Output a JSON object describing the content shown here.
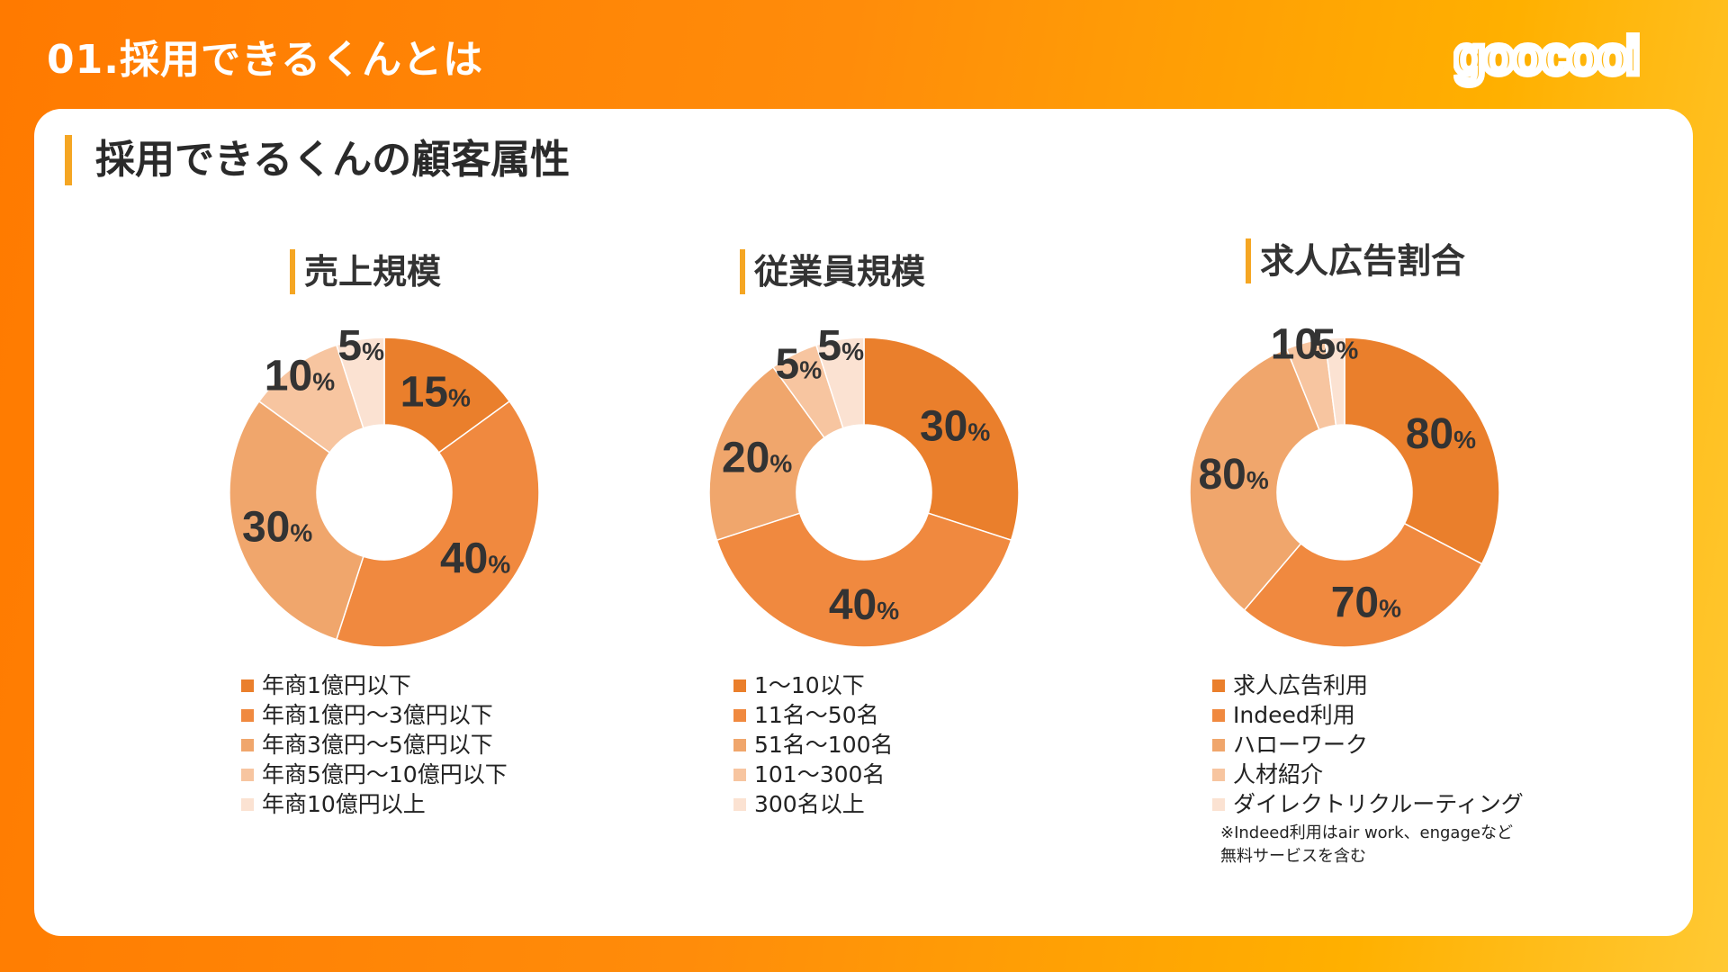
{
  "header": {
    "title": "01.採用できるくんとは",
    "logo_text": "goocooi"
  },
  "page_heading": "採用できるくんの顧客属性",
  "colors": [
    "#ea7f2c",
    "#f0893f",
    "#f0a66c",
    "#f7c5a0",
    "#fbe2d2"
  ],
  "chart_data": [
    {
      "type": "pie",
      "style": "donut",
      "title": "売上規模",
      "categories": [
        "年商1億円以下",
        "年商1億円〜3億円以下",
        "年商3億円〜5億円以下",
        "年商5億円〜10億円以下",
        "年商10億円以上"
      ],
      "values": [
        15,
        40,
        30,
        10,
        5
      ],
      "data_labels": [
        "15",
        "40",
        "30",
        "10",
        "5"
      ],
      "unit": "%"
    },
    {
      "type": "pie",
      "style": "donut",
      "title": "従業員規模",
      "categories": [
        "1〜10以下",
        "11名〜50名",
        "51名〜100名",
        "101〜300名",
        "300名以上"
      ],
      "values": [
        30,
        40,
        20,
        5,
        5
      ],
      "data_labels": [
        "30",
        "40",
        "20",
        "5",
        "5"
      ],
      "unit": "%"
    },
    {
      "type": "pie",
      "style": "donut",
      "title": "求人広告割合",
      "categories": [
        "求人広告利用",
        "Indeed利用",
        "ハローワーク",
        "人材紹介",
        "ダイレクトリクルーティング"
      ],
      "values": [
        80,
        70,
        80,
        10,
        5
      ],
      "data_labels": [
        "80",
        "70",
        "80",
        "10",
        "5"
      ],
      "unit": "%",
      "note": "※Indeed利用はair work、engageなど\n無料サービスを含む"
    }
  ]
}
